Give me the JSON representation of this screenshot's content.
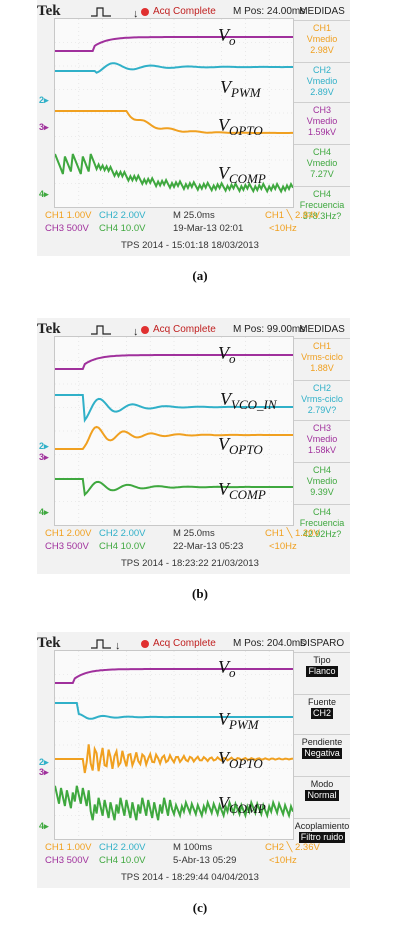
{
  "colors": {
    "ch1": "#f0a020",
    "ch2": "#30b0c8",
    "ch3": "#a0309c",
    "ch4": "#3fa83f",
    "acq": "#e03030"
  },
  "panels": [
    {
      "brand": "Tek",
      "acq": "Acq Complete",
      "mpos": "M Pos: 24.00ms",
      "menu_title": "MEDIDAS",
      "labels": {
        "vo": "V",
        "vo_sub": "o",
        "l2": "V",
        "l2_sub": "PWM",
        "l3": "V",
        "l3_sub": "OPTO",
        "l4": "V",
        "l4_sub": "COMP"
      },
      "menu": [
        {
          "l1": "CH1",
          "l2": "Vmedio",
          "l3": "2.98V",
          "color": "ch1"
        },
        {
          "l1": "CH2",
          "l2": "Vmedio",
          "l3": "2.89V",
          "color": "ch2"
        },
        {
          "l1": "CH3",
          "l2": "Vmedio",
          "l3": "1.59kV",
          "color": "ch3"
        },
        {
          "l1": "CH4",
          "l2": "Vmedio",
          "l3": "7.27V",
          "color": "ch4"
        },
        {
          "l1": "CH4",
          "l2": "Frecuencia",
          "l3": "378.3Hz?",
          "color": "ch4"
        }
      ],
      "bottom": {
        "ch1": "CH1  1.00V",
        "ch2": "CH2  2.00V",
        "ch3": "CH3  500V",
        "ch4": "CH4  10.0V",
        "m": "M 25.0ms",
        "date": "19-Mar-13 02:01",
        "trig": "CH1 ╲ 2.84V",
        "freq": "<10Hz"
      },
      "footer": "TPS 2014 - 15:01:18   18/03/2013",
      "caption": "(a)"
    },
    {
      "brand": "Tek",
      "acq": "Acq Complete",
      "mpos": "M Pos: 99.00ms",
      "menu_title": "MEDIDAS",
      "labels": {
        "vo": "V",
        "vo_sub": "o",
        "l2": "V",
        "l2_sub": "VCO_IN",
        "l3": "V",
        "l3_sub": "OPTO",
        "l4": "V",
        "l4_sub": "COMP"
      },
      "menu": [
        {
          "l1": "CH1",
          "l2": "Vrms-ciclo",
          "l3": "1.88V",
          "color": "ch1"
        },
        {
          "l1": "CH2",
          "l2": "Vrms-ciclo",
          "l3": "2.79V?",
          "color": "ch2"
        },
        {
          "l1": "CH3",
          "l2": "Vmedio",
          "l3": "1.58kV",
          "color": "ch3"
        },
        {
          "l1": "CH4",
          "l2": "Vmedio",
          "l3": "9.39V",
          "color": "ch4"
        },
        {
          "l1": "CH4",
          "l2": "Frecuencia",
          "l3": "42.92Hz?",
          "color": "ch4"
        }
      ],
      "bottom": {
        "ch1": "CH1  2.00V",
        "ch2": "CH2  2.00V",
        "ch3": "CH3  500V",
        "ch4": "CH4  10.0V",
        "m": "M 25.0ms",
        "date": "22-Mar-13 05:23",
        "trig": "CH1 ╲ 1.20V",
        "freq": "<10Hz"
      },
      "footer": "TPS 2014 - 18:23:22   21/03/2013",
      "caption": "(b)"
    },
    {
      "brand": "Tek",
      "acq": "Acq Complete",
      "mpos": "M Pos: 204.0ms",
      "menu_title": "DISPARO",
      "labels": {
        "vo": "V",
        "vo_sub": "o",
        "l2": "V",
        "l2_sub": "PWM",
        "l3": "V",
        "l3_sub": "OPTO",
        "l4": "V",
        "l4_sub": "COMP"
      },
      "menu": [
        {
          "l1": "Tipo",
          "l2": "",
          "l3": "Flanco",
          "color": "dark"
        },
        {
          "l1": "Fuente",
          "l2": "",
          "l3": "CH2",
          "color": "dark"
        },
        {
          "l1": "Pendiente",
          "l2": "",
          "l3": "Negativa",
          "color": "dark"
        },
        {
          "l1": "Modo",
          "l2": "",
          "l3": "Normal",
          "color": "dark"
        },
        {
          "l1": "Acoplamiento",
          "l2": "",
          "l3": "Filtro ruido",
          "color": "dark"
        }
      ],
      "bottom": {
        "ch1": "CH1  1.00V",
        "ch2": "CH2  2.00V",
        "ch3": "CH3  500V",
        "ch4": "CH4  10.0V",
        "m": "M 100ms",
        "date": "5-Abr-13 05:29",
        "trig": "CH2 ╲ 2.36V",
        "freq": "<10Hz"
      },
      "footer": "TPS 2014 - 18:29:44   04/04/2013",
      "caption": "(c)"
    }
  ]
}
